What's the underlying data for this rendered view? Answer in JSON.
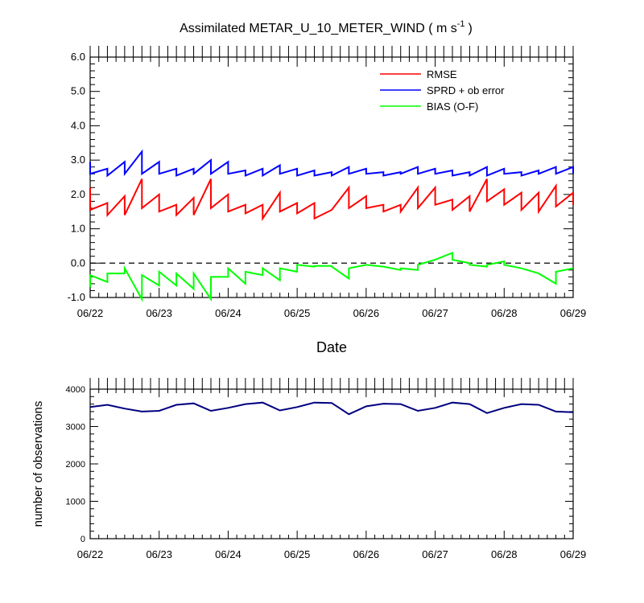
{
  "chart_data": [
    {
      "type": "line",
      "title": "Assimilated METAR_U_10_METER_WIND ( m s",
      "title_sup": "-1",
      "title_close": ")",
      "xlabel": "Date",
      "ylabel": "",
      "xlim": [
        0,
        7
      ],
      "ylim": [
        -1.0,
        6.0
      ],
      "x_ticks": [
        "06/22",
        "06/23",
        "06/24",
        "06/25",
        "06/26",
        "06/27",
        "06/28",
        "06/29"
      ],
      "y_ticks": [
        "-1.0",
        "0.0",
        "1.0",
        "2.0",
        "3.0",
        "4.0",
        "5.0",
        "6.0"
      ],
      "reference_line": {
        "y": 0.0,
        "style": "dashed"
      },
      "grid": false,
      "legend_position": "top-right",
      "x_unit": "days since 06/22 00Z",
      "series": [
        {
          "name": "RMSE",
          "color": "#ff0000",
          "points": [
            [
              0,
              2.2
            ],
            [
              0,
              1.55
            ],
            [
              0.25,
              1.75
            ],
            [
              0.25,
              1.4
            ],
            [
              0.5,
              1.95
            ],
            [
              0.5,
              1.4
            ],
            [
              0.75,
              2.45
            ],
            [
              0.75,
              1.6
            ],
            [
              1,
              2.0
            ],
            [
              1,
              1.5
            ],
            [
              1.25,
              1.7
            ],
            [
              1.25,
              1.4
            ],
            [
              1.5,
              1.9
            ],
            [
              1.5,
              1.4
            ],
            [
              1.75,
              2.45
            ],
            [
              1.75,
              1.6
            ],
            [
              2,
              2.0
            ],
            [
              2,
              1.5
            ],
            [
              2.25,
              1.7
            ],
            [
              2.25,
              1.45
            ],
            [
              2.5,
              1.7
            ],
            [
              2.5,
              1.3
            ],
            [
              2.75,
              2.05
            ],
            [
              2.75,
              1.5
            ],
            [
              3,
              1.75
            ],
            [
              3,
              1.45
            ],
            [
              3.25,
              1.75
            ],
            [
              3.25,
              1.3
            ],
            [
              3.5,
              1.55
            ],
            [
              3.5,
              1.55
            ],
            [
              3.75,
              2.2
            ],
            [
              3.75,
              1.6
            ],
            [
              4,
              1.95
            ],
            [
              4,
              1.6
            ],
            [
              4.25,
              1.7
            ],
            [
              4.25,
              1.5
            ],
            [
              4.5,
              1.7
            ],
            [
              4.5,
              1.5
            ],
            [
              4.75,
              2.2
            ],
            [
              4.75,
              1.6
            ],
            [
              5,
              2.2
            ],
            [
              5,
              1.7
            ],
            [
              5.25,
              1.85
            ],
            [
              5.25,
              1.55
            ],
            [
              5.5,
              1.95
            ],
            [
              5.5,
              1.5
            ],
            [
              5.75,
              2.45
            ],
            [
              5.75,
              1.8
            ],
            [
              6,
              2.15
            ],
            [
              6,
              1.7
            ],
            [
              6.25,
              2.05
            ],
            [
              6.25,
              1.55
            ],
            [
              6.5,
              2.05
            ],
            [
              6.5,
              1.5
            ],
            [
              6.75,
              2.25
            ],
            [
              6.75,
              1.65
            ],
            [
              7,
              2.05
            ],
            [
              7,
              1.7
            ]
          ]
        },
        {
          "name": "SPRD + ob error",
          "color": "#0000ff",
          "points": [
            [
              0,
              2.95
            ],
            [
              0,
              2.6
            ],
            [
              0.25,
              2.75
            ],
            [
              0.25,
              2.55
            ],
            [
              0.5,
              2.95
            ],
            [
              0.5,
              2.6
            ],
            [
              0.75,
              3.25
            ],
            [
              0.75,
              2.6
            ],
            [
              1,
              2.95
            ],
            [
              1,
              2.6
            ],
            [
              1.25,
              2.75
            ],
            [
              1.25,
              2.55
            ],
            [
              1.5,
              2.75
            ],
            [
              1.5,
              2.6
            ],
            [
              1.75,
              3.0
            ],
            [
              1.75,
              2.6
            ],
            [
              2,
              2.95
            ],
            [
              2,
              2.6
            ],
            [
              2.25,
              2.7
            ],
            [
              2.25,
              2.55
            ],
            [
              2.5,
              2.75
            ],
            [
              2.5,
              2.55
            ],
            [
              2.75,
              2.85
            ],
            [
              2.75,
              2.6
            ],
            [
              3,
              2.75
            ],
            [
              3,
              2.55
            ],
            [
              3.25,
              2.7
            ],
            [
              3.25,
              2.55
            ],
            [
              3.5,
              2.65
            ],
            [
              3.5,
              2.55
            ],
            [
              3.75,
              2.8
            ],
            [
              3.75,
              2.6
            ],
            [
              4,
              2.75
            ],
            [
              4,
              2.6
            ],
            [
              4.25,
              2.65
            ],
            [
              4.25,
              2.55
            ],
            [
              4.5,
              2.65
            ],
            [
              4.5,
              2.6
            ],
            [
              4.75,
              2.8
            ],
            [
              4.75,
              2.6
            ],
            [
              5,
              2.75
            ],
            [
              5,
              2.6
            ],
            [
              5.25,
              2.7
            ],
            [
              5.25,
              2.55
            ],
            [
              5.5,
              2.65
            ],
            [
              5.5,
              2.55
            ],
            [
              5.75,
              2.8
            ],
            [
              5.75,
              2.55
            ],
            [
              6,
              2.75
            ],
            [
              6,
              2.6
            ],
            [
              6.25,
              2.65
            ],
            [
              6.25,
              2.55
            ],
            [
              6.5,
              2.7
            ],
            [
              6.5,
              2.6
            ],
            [
              6.75,
              2.8
            ],
            [
              6.75,
              2.6
            ],
            [
              7,
              2.8
            ],
            [
              7,
              2.6
            ]
          ]
        },
        {
          "name": "BIAS (O-F)",
          "color": "#00ff00",
          "points": [
            [
              0,
              -0.7
            ],
            [
              0,
              -0.35
            ],
            [
              0.25,
              -0.55
            ],
            [
              0.25,
              -0.3
            ],
            [
              0.5,
              -0.3
            ],
            [
              0.5,
              -0.15
            ],
            [
              0.75,
              -1.05
            ],
            [
              0.75,
              -0.35
            ],
            [
              1,
              -0.65
            ],
            [
              1,
              -0.25
            ],
            [
              1.25,
              -0.65
            ],
            [
              1.25,
              -0.3
            ],
            [
              1.5,
              -0.75
            ],
            [
              1.5,
              -0.3
            ],
            [
              1.75,
              -1.05
            ],
            [
              1.75,
              -0.4
            ],
            [
              2,
              -0.4
            ],
            [
              2,
              -0.15
            ],
            [
              2.25,
              -0.6
            ],
            [
              2.25,
              -0.25
            ],
            [
              2.5,
              -0.35
            ],
            [
              2.5,
              -0.15
            ],
            [
              2.75,
              -0.5
            ],
            [
              2.75,
              -0.15
            ],
            [
              3,
              -0.25
            ],
            [
              3,
              -0.05
            ],
            [
              3.25,
              -0.1
            ],
            [
              3.25,
              -0.08
            ],
            [
              3.5,
              -0.08
            ],
            [
              3.5,
              -0.1
            ],
            [
              3.75,
              -0.45
            ],
            [
              3.75,
              -0.15
            ],
            [
              4,
              -0.05
            ],
            [
              4,
              -0.05
            ],
            [
              4.25,
              -0.1
            ],
            [
              4.25,
              -0.1
            ],
            [
              4.5,
              -0.2
            ],
            [
              4.5,
              -0.15
            ],
            [
              4.75,
              -0.2
            ],
            [
              4.75,
              -0.05
            ],
            [
              5,
              0.1
            ],
            [
              5,
              0.1
            ],
            [
              5.25,
              0.3
            ],
            [
              5.25,
              0.1
            ],
            [
              5.5,
              0.0
            ],
            [
              5.5,
              -0.05
            ],
            [
              5.75,
              -0.1
            ],
            [
              5.75,
              -0.05
            ],
            [
              6,
              0.05
            ],
            [
              6,
              -0.05
            ],
            [
              6.25,
              -0.15
            ],
            [
              6.25,
              -0.15
            ],
            [
              6.5,
              -0.3
            ],
            [
              6.5,
              -0.3
            ],
            [
              6.75,
              -0.6
            ],
            [
              6.75,
              -0.25
            ],
            [
              7,
              -0.15
            ],
            [
              7,
              -0.15
            ]
          ]
        }
      ]
    },
    {
      "type": "line",
      "title": "",
      "xlabel": "",
      "ylabel": "number of observations",
      "xlim": [
        0,
        7
      ],
      "ylim": [
        0,
        4000
      ],
      "x_ticks": [
        "06/22",
        "06/23",
        "06/24",
        "06/25",
        "06/26",
        "06/27",
        "06/28",
        "06/29"
      ],
      "y_ticks": [
        "0",
        "1000",
        "2000",
        "3000",
        "4000"
      ],
      "grid": false,
      "x_unit": "days since 06/22 00Z",
      "series": [
        {
          "name": "",
          "color": "#000080",
          "x": [
            0,
            0.25,
            0.5,
            0.75,
            1,
            1.25,
            1.5,
            1.75,
            2,
            2.25,
            2.5,
            2.75,
            3,
            3.25,
            3.5,
            3.75,
            4,
            4.25,
            4.5,
            4.75,
            5,
            5.25,
            5.5,
            5.75,
            6,
            6.25,
            6.5,
            6.75,
            7
          ],
          "values": [
            3520,
            3580,
            3480,
            3400,
            3420,
            3580,
            3620,
            3420,
            3500,
            3600,
            3640,
            3430,
            3520,
            3640,
            3630,
            3330,
            3540,
            3610,
            3600,
            3420,
            3500,
            3640,
            3600,
            3360,
            3500,
            3600,
            3580,
            3400,
            3380
          ]
        }
      ]
    }
  ]
}
